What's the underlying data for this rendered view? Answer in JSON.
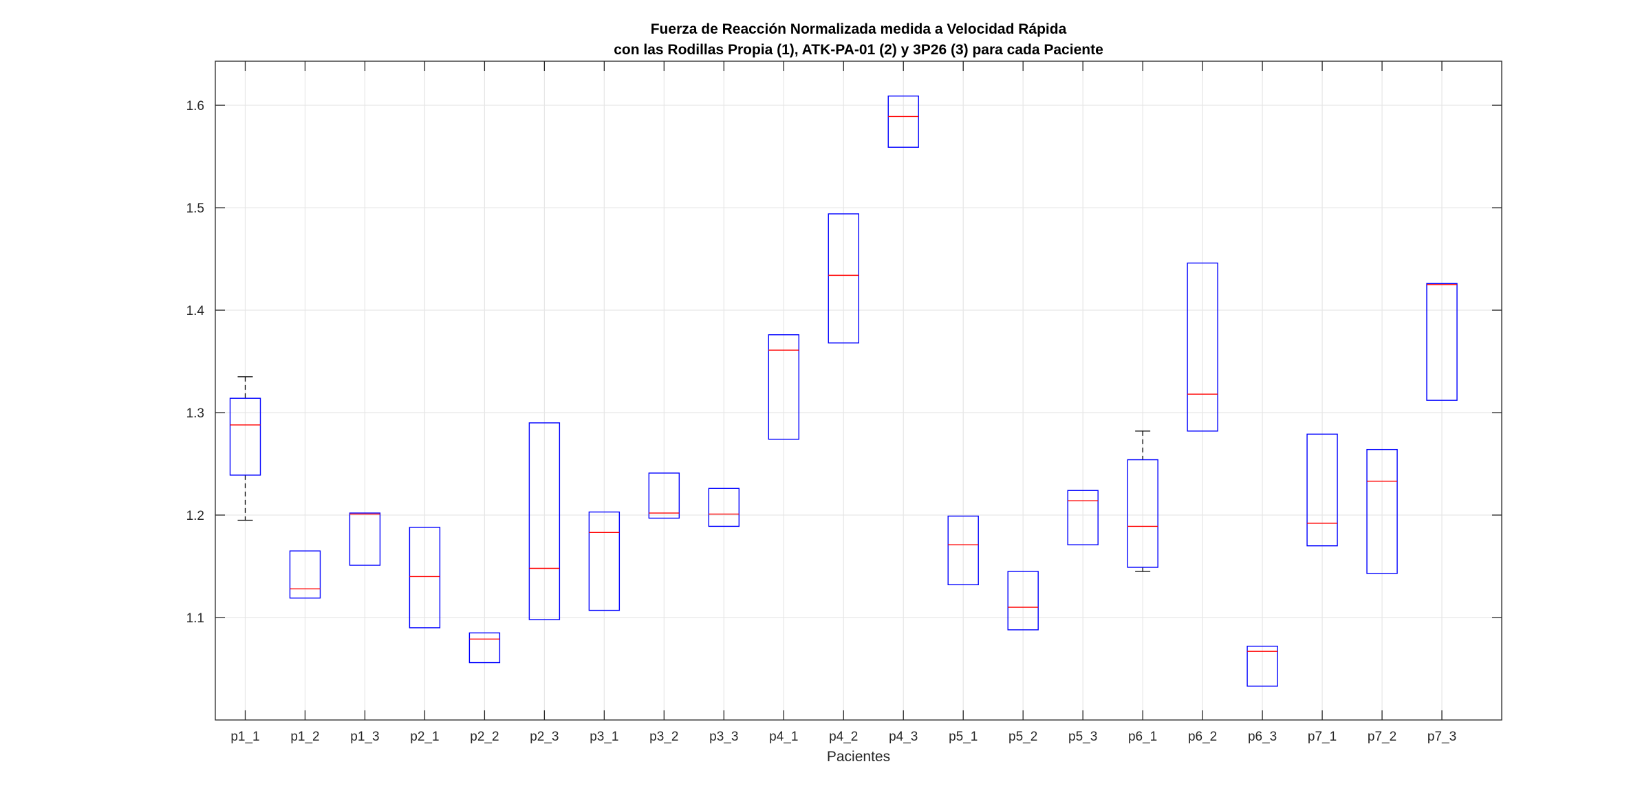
{
  "chart_data": {
    "type": "boxplot",
    "title": [
      "Fuerza de Reacción Normalizada medida a Velocidad Rápida",
      "con las Rodillas Propia (1), ATK-PA-01 (2) y 3P26 (3) para cada Paciente"
    ],
    "xlabel": "Pacientes",
    "ylabel": "",
    "ylim": [
      1.0,
      1.643
    ],
    "yticks": [
      1.1,
      1.2,
      1.3,
      1.4,
      1.5,
      1.6
    ],
    "grid": true,
    "colors": {
      "box": "#0000ff",
      "median": "#ff0000",
      "whisker": "#000000",
      "grid": "#e6e6e6",
      "axis": "#262626"
    },
    "categories": [
      "p1_1",
      "p1_2",
      "p1_3",
      "p2_1",
      "p2_2",
      "p2_3",
      "p3_1",
      "p3_2",
      "p3_3",
      "p4_1",
      "p4_2",
      "p4_3",
      "p5_1",
      "p5_2",
      "p5_3",
      "p6_1",
      "p6_2",
      "p6_3",
      "p7_1",
      "p7_2",
      "p7_3"
    ],
    "boxes": [
      {
        "q1": 1.239,
        "median": 1.288,
        "q3": 1.314,
        "whisker_low": 1.195,
        "whisker_high": 1.335
      },
      {
        "q1": 1.119,
        "median": 1.128,
        "q3": 1.165,
        "whisker_low": 1.119,
        "whisker_high": 1.165
      },
      {
        "q1": 1.151,
        "median": 1.201,
        "q3": 1.202,
        "whisker_low": 1.151,
        "whisker_high": 1.202
      },
      {
        "q1": 1.09,
        "median": 1.14,
        "q3": 1.188,
        "whisker_low": 1.09,
        "whisker_high": 1.188
      },
      {
        "q1": 1.056,
        "median": 1.079,
        "q3": 1.085,
        "whisker_low": 1.056,
        "whisker_high": 1.085
      },
      {
        "q1": 1.098,
        "median": 1.148,
        "q3": 1.29,
        "whisker_low": 1.098,
        "whisker_high": 1.29
      },
      {
        "q1": 1.107,
        "median": 1.183,
        "q3": 1.203,
        "whisker_low": 1.107,
        "whisker_high": 1.203
      },
      {
        "q1": 1.197,
        "median": 1.202,
        "q3": 1.241,
        "whisker_low": 1.197,
        "whisker_high": 1.241
      },
      {
        "q1": 1.189,
        "median": 1.201,
        "q3": 1.226,
        "whisker_low": 1.189,
        "whisker_high": 1.226
      },
      {
        "q1": 1.274,
        "median": 1.361,
        "q3": 1.376,
        "whisker_low": 1.274,
        "whisker_high": 1.376
      },
      {
        "q1": 1.368,
        "median": 1.434,
        "q3": 1.494,
        "whisker_low": 1.368,
        "whisker_high": 1.494
      },
      {
        "q1": 1.559,
        "median": 1.589,
        "q3": 1.609,
        "whisker_low": 1.559,
        "whisker_high": 1.609
      },
      {
        "q1": 1.132,
        "median": 1.171,
        "q3": 1.199,
        "whisker_low": 1.132,
        "whisker_high": 1.199
      },
      {
        "q1": 1.088,
        "median": 1.11,
        "q3": 1.145,
        "whisker_low": 1.088,
        "whisker_high": 1.145
      },
      {
        "q1": 1.171,
        "median": 1.214,
        "q3": 1.224,
        "whisker_low": 1.171,
        "whisker_high": 1.224
      },
      {
        "q1": 1.149,
        "median": 1.189,
        "q3": 1.254,
        "whisker_low": 1.145,
        "whisker_high": 1.282
      },
      {
        "q1": 1.282,
        "median": 1.318,
        "q3": 1.446,
        "whisker_low": 1.282,
        "whisker_high": 1.446
      },
      {
        "q1": 1.033,
        "median": 1.067,
        "q3": 1.072,
        "whisker_low": 1.033,
        "whisker_high": 1.072
      },
      {
        "q1": 1.17,
        "median": 1.192,
        "q3": 1.279,
        "whisker_low": 1.17,
        "whisker_high": 1.279
      },
      {
        "q1": 1.143,
        "median": 1.233,
        "q3": 1.264,
        "whisker_low": 1.143,
        "whisker_high": 1.264
      },
      {
        "q1": 1.312,
        "median": 1.425,
        "q3": 1.426,
        "whisker_low": 1.312,
        "whisker_high": 1.426
      }
    ]
  }
}
